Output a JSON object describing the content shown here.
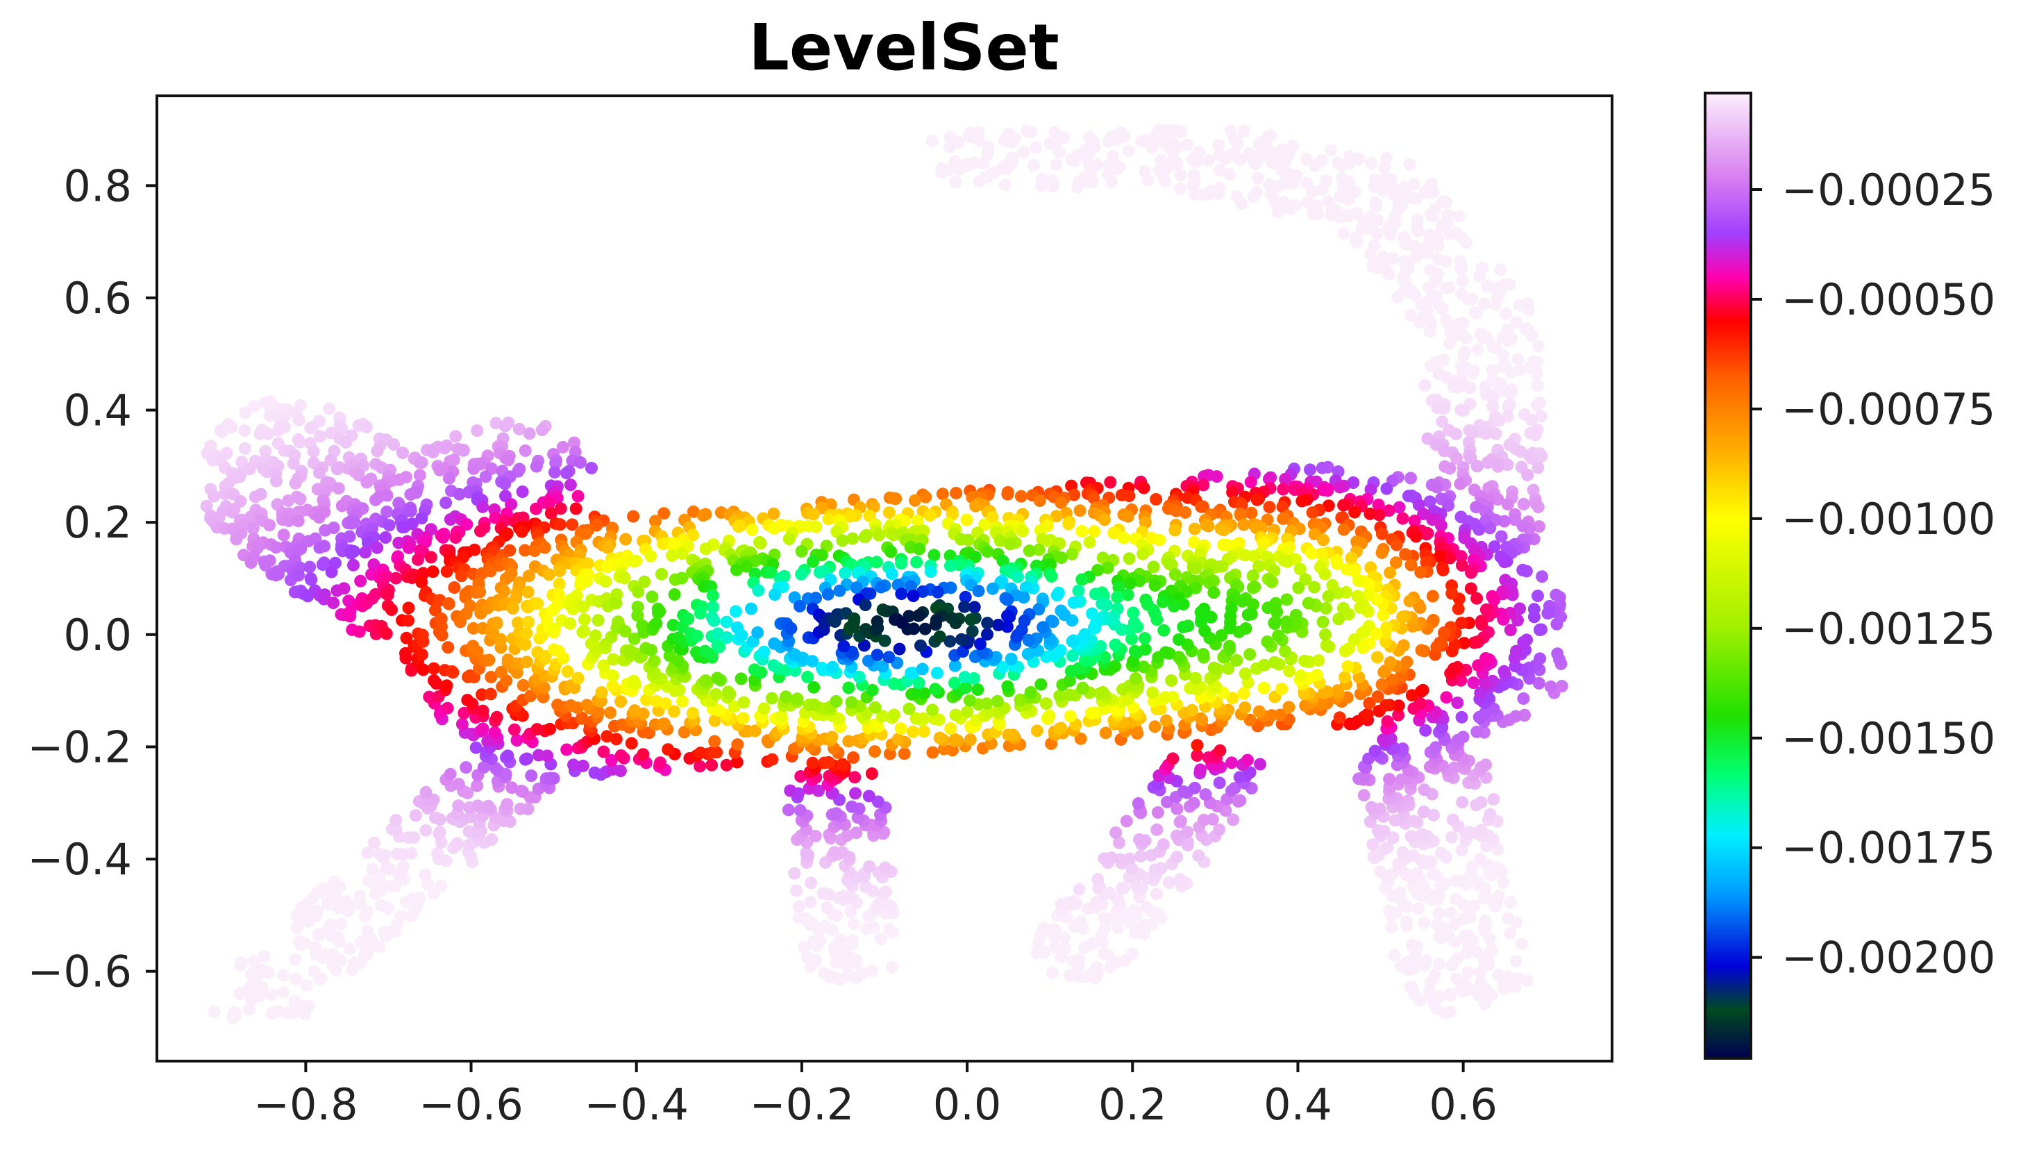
{
  "chart_data": {
    "type": "scatter",
    "title": "LevelSet",
    "xlabel": "",
    "ylabel": "",
    "xlim": [
      -0.98,
      0.78
    ],
    "ylim": [
      -0.76,
      0.96
    ],
    "xticks": [
      -0.8,
      -0.6,
      -0.4,
      -0.2,
      0.0,
      0.2,
      0.4,
      0.6
    ],
    "xtick_labels": [
      "−0.8",
      "−0.6",
      "−0.4",
      "−0.2",
      "0.0",
      "0.2",
      "0.4",
      "0.6"
    ],
    "yticks": [
      0.8,
      0.6,
      0.4,
      0.2,
      0.0,
      -0.2,
      -0.4,
      -0.6
    ],
    "ytick_labels": [
      "0.8",
      "0.6",
      "0.4",
      "0.2",
      "0.0",
      "−0.2",
      "−0.4",
      "−0.6"
    ],
    "grid": false,
    "point_cloud_shape": "cat silhouette (head left, tail curling up at right)",
    "colorbar": {
      "colormap": "gist_ncar_r",
      "range": [
        -0.00223,
        -3e-05
      ],
      "ticks": [
        -0.00025,
        -0.0005,
        -0.00075,
        -0.001,
        -0.00125,
        -0.0015,
        -0.00175,
        -0.002
      ],
      "tick_labels": [
        "−0.00025",
        "−0.00050",
        "−0.00075",
        "−0.00100",
        "−0.00125",
        "−0.00150",
        "−0.00175",
        "−0.00200"
      ],
      "color_stops": [
        {
          "value": -0.00223,
          "color": "#000050"
        },
        {
          "value": -0.00212,
          "color": "#004a20"
        },
        {
          "value": -0.00202,
          "color": "#0000d8"
        },
        {
          "value": -0.00185,
          "color": "#00a0ff"
        },
        {
          "value": -0.00172,
          "color": "#00f0ff"
        },
        {
          "value": -0.00158,
          "color": "#00ff70"
        },
        {
          "value": -0.00145,
          "color": "#20e000"
        },
        {
          "value": -0.00125,
          "color": "#a0f000"
        },
        {
          "value": -0.001,
          "color": "#ffff00"
        },
        {
          "value": -0.00085,
          "color": "#ffb000"
        },
        {
          "value": -0.00068,
          "color": "#ff6000"
        },
        {
          "value": -0.00055,
          "color": "#ff0000"
        },
        {
          "value": -0.00045,
          "color": "#ff00b0"
        },
        {
          "value": -0.00035,
          "color": "#a040ff"
        },
        {
          "value": -0.00022,
          "color": "#d880f0"
        },
        {
          "value": -3e-05,
          "color": "#fbeefb"
        }
      ]
    }
  }
}
